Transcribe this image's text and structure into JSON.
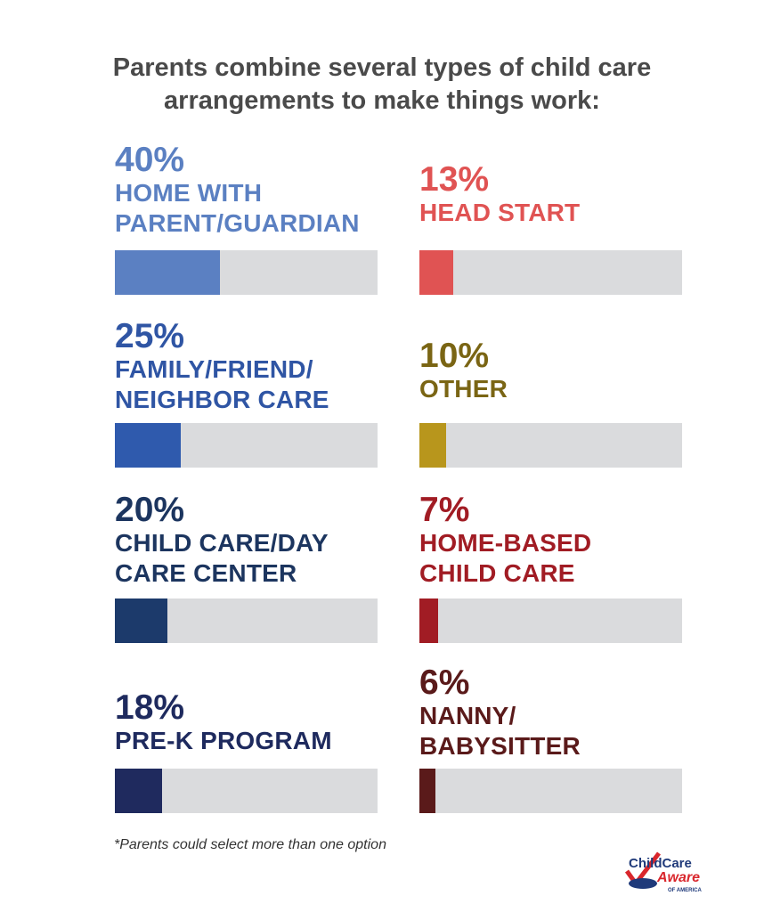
{
  "chart_data": {
    "type": "bar",
    "title": "Parents combine several types of child care arrangements to make things work:",
    "title_lines": [
      "Parents combine several types of child care",
      "arrangements to make things work:"
    ],
    "value_range": [
      0,
      100
    ],
    "items": [
      {
        "value": 40,
        "pct": "40%",
        "label_lines": [
          "HOME WITH",
          "PARENT/GUARDIAN"
        ],
        "text_color": "#5b80c2",
        "bar_color": "#5b80c2"
      },
      {
        "value": 25,
        "pct": "25%",
        "label_lines": [
          "FAMILY/FRIEND/",
          "NEIGHBOR CARE"
        ],
        "text_color": "#2f55a4",
        "bar_color": "#2f5aad"
      },
      {
        "value": 20,
        "pct": "20%",
        "label_lines": [
          "CHILD CARE/DAY",
          "CARE CENTER"
        ],
        "text_color": "#1c355f",
        "bar_color": "#1c3a6b"
      },
      {
        "value": 18,
        "pct": "18%",
        "label_lines": [
          "PRE-K PROGRAM"
        ],
        "text_color": "#1e2a5e",
        "bar_color": "#1f2a5e"
      },
      {
        "value": 13,
        "pct": "13%",
        "label_lines": [
          "HEAD START"
        ],
        "text_color": "#e05353",
        "bar_color": "#e05353"
      },
      {
        "value": 10,
        "pct": "10%",
        "label_lines": [
          "OTHER"
        ],
        "text_color": "#7a6514",
        "bar_color": "#b8961c"
      },
      {
        "value": 7,
        "pct": "7%",
        "label_lines": [
          "HOME-BASED",
          "CHILD CARE"
        ],
        "text_color": "#a11c24",
        "bar_color": "#a11c24"
      },
      {
        "value": 6,
        "pct": "6%",
        "label_lines": [
          "NANNY/",
          "BABYSITTER"
        ],
        "text_color": "#5a1a1a",
        "bar_color": "#5a1a1a"
      }
    ],
    "track_color": "#dadbdd"
  },
  "footnote": "*Parents could select more than one option",
  "logo": {
    "text": "ChildCare Aware of America"
  }
}
